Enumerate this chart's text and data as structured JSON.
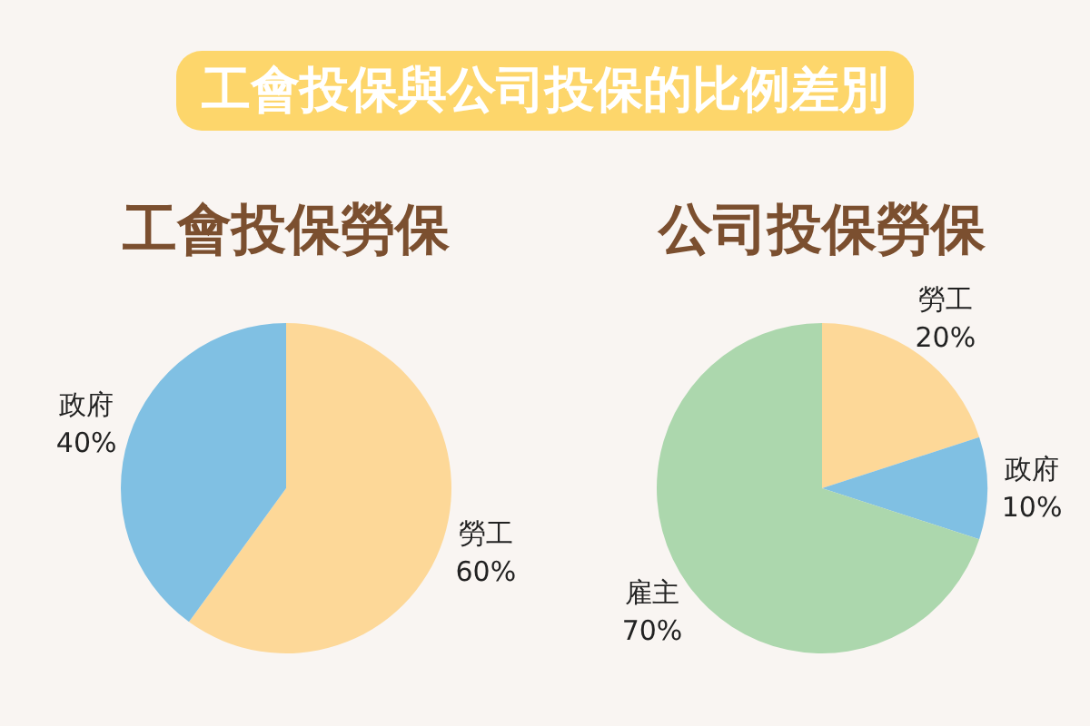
{
  "chart_data": [
    {
      "type": "other",
      "title": "工會投保與公司投保的比例差別"
    },
    {
      "type": "pie",
      "title": "工會投保勞保",
      "categories": [
        "勞工",
        "政府"
      ],
      "values": [
        60,
        40
      ],
      "colors": [
        "#fdd898",
        "#80c0e3"
      ],
      "value_labels": [
        "60%",
        "40%"
      ]
    },
    {
      "type": "pie",
      "title": "公司投保勞保",
      "categories": [
        "勞工",
        "政府",
        "雇主"
      ],
      "values": [
        20,
        10,
        70
      ],
      "colors": [
        "#fdd898",
        "#80c0e3",
        "#acd7ad"
      ],
      "value_labels": [
        "20%",
        "10%",
        "70%"
      ]
    }
  ]
}
